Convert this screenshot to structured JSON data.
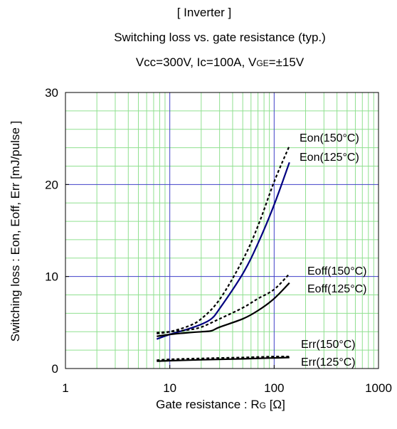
{
  "chart_data": {
    "type": "line",
    "title_lines": {
      "line1": "[ Inverter ]",
      "line2": "Switching loss  vs.  gate resistance  (typ.)",
      "line3_pre": "Vcc=300V, Ic=100A, V",
      "line3_sub": "GE",
      "line3_post": "=±15V"
    },
    "xlabel": {
      "pre": "Gate resistance : R",
      "sub": "G",
      "post": " [Ω]"
    },
    "ylabel": "Switching loss  : Eon, Eoff, Err  [mJ/pulse ]",
    "x_scale": "log",
    "xlim": [
      1,
      1000
    ],
    "ylim": [
      0,
      30
    ],
    "x_ticks": [
      1,
      10,
      100,
      1000
    ],
    "x_tick_labels": [
      "1",
      "10",
      "100",
      "1000"
    ],
    "y_ticks": [
      0,
      10,
      20,
      30
    ],
    "y_tick_labels": [
      "0",
      "10",
      "20",
      "30"
    ],
    "grid": true,
    "series": [
      {
        "name": "Eon(150°C)",
        "style": "dotted",
        "color": "#000000",
        "x": [
          7.5,
          10,
          15,
          20,
          30,
          50,
          70,
          100,
          140
        ],
        "y": [
          3.8,
          4.0,
          4.6,
          5.4,
          7.5,
          11.8,
          15.5,
          20.3,
          24.2
        ]
      },
      {
        "name": "Eon(125°C)",
        "style": "solid",
        "color": "#000080",
        "x": [
          7.5,
          10,
          15,
          20,
          25,
          30,
          50,
          70,
          100,
          140
        ],
        "y": [
          3.2,
          3.7,
          4.3,
          4.8,
          5.4,
          6.5,
          10.3,
          13.6,
          17.8,
          22.4
        ]
      },
      {
        "name": "Eoff(150°C)",
        "style": "dotted",
        "color": "#000000",
        "x": [
          7.5,
          10,
          15,
          20,
          30,
          50,
          70,
          100,
          140
        ],
        "y": [
          3.9,
          4.0,
          4.2,
          4.5,
          5.4,
          6.6,
          7.6,
          8.6,
          10.3
        ]
      },
      {
        "name": "Eoff(125°C)",
        "style": "solid",
        "color": "#000000",
        "x": [
          7.5,
          10,
          15,
          20,
          25,
          30,
          50,
          70,
          100,
          140
        ],
        "y": [
          3.5,
          3.7,
          3.9,
          4.0,
          4.1,
          4.5,
          5.4,
          6.3,
          7.6,
          9.3
        ]
      },
      {
        "name": "Err(150°C)",
        "style": "dotted",
        "color": "#000000",
        "x": [
          7.5,
          10,
          20,
          50,
          100,
          140
        ],
        "y": [
          0.9,
          1.0,
          1.1,
          1.2,
          1.3,
          1.3
        ]
      },
      {
        "name": "Err(125°C)",
        "style": "solid",
        "color": "#000000",
        "x": [
          7.5,
          10,
          20,
          50,
          100,
          140
        ],
        "y": [
          0.8,
          0.85,
          0.95,
          1.05,
          1.15,
          1.2
        ]
      }
    ],
    "legend_labels": [
      "Eon(150°C)",
      "Eon(125°C)",
      "Eoff(150°C)",
      "Eoff(125°C)",
      "Err(150°C)",
      "Err(125°C)"
    ],
    "colors": {
      "major_grid": "#4040c8",
      "minor_grid": "#90e090",
      "axis": "#000000",
      "eon_125": "#000080"
    }
  }
}
